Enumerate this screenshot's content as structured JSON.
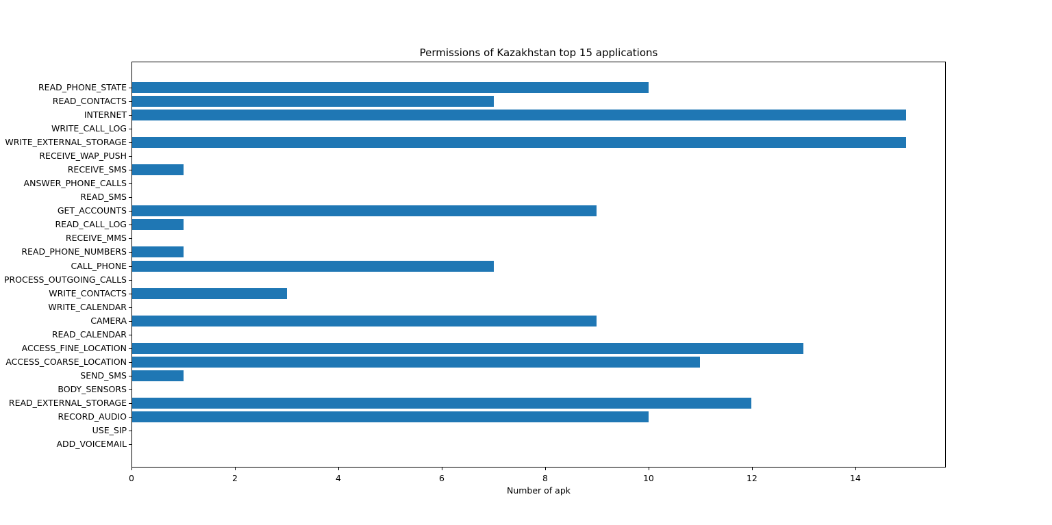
{
  "figure": {
    "background": "#ffffff"
  },
  "chart_data": {
    "type": "bar",
    "orientation": "horizontal",
    "title": "Permissions of Kazakhstan top 15 applications",
    "xlabel": "Number of apk",
    "ylabel": "",
    "categories": [
      "READ_PHONE_STATE",
      "READ_CONTACTS",
      "INTERNET",
      "WRITE_CALL_LOG",
      "WRITE_EXTERNAL_STORAGE",
      "RECEIVE_WAP_PUSH",
      "RECEIVE_SMS",
      "ANSWER_PHONE_CALLS",
      "READ_SMS",
      "GET_ACCOUNTS",
      "READ_CALL_LOG",
      "RECEIVE_MMS",
      "READ_PHONE_NUMBERS",
      "CALL_PHONE",
      "PROCESS_OUTGOING_CALLS",
      "WRITE_CONTACTS",
      "WRITE_CALENDAR",
      "CAMERA",
      "READ_CALENDAR",
      "ACCESS_FINE_LOCATION",
      "ACCESS_COARSE_LOCATION",
      "SEND_SMS",
      "BODY_SENSORS",
      "READ_EXTERNAL_STORAGE",
      "RECORD_AUDIO",
      "USE_SIP",
      "ADD_VOICEMAIL"
    ],
    "values": [
      10,
      7,
      15,
      0,
      15,
      0,
      1,
      0,
      0,
      9,
      1,
      0,
      1,
      7,
      0,
      3,
      0,
      9,
      0,
      13,
      11,
      1,
      0,
      12,
      10,
      0,
      0
    ],
    "xlim": [
      0,
      15.75
    ],
    "xticks": [
      0,
      2,
      4,
      6,
      8,
      10,
      12,
      14
    ],
    "bar_color": "#1f77b4",
    "grid": false,
    "legend_position": "none"
  }
}
